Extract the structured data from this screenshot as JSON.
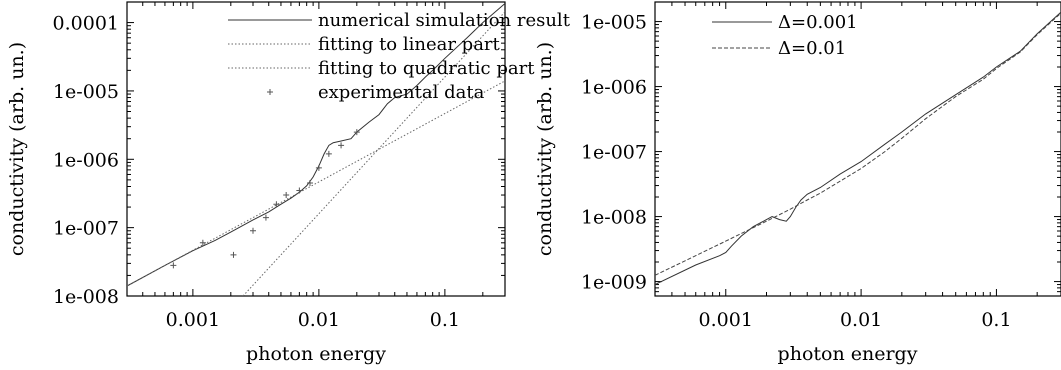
{
  "chart_data": [
    {
      "type": "line",
      "xscale": "log",
      "yscale": "log",
      "xlim": [
        0.0003,
        0.3
      ],
      "ylim": [
        1e-08,
        0.0002
      ],
      "xlabel": "photon energy",
      "ylabel": "conductivity (arb. un.)",
      "x_ticks": [
        {
          "value": 0.001,
          "label": "0.001"
        },
        {
          "value": 0.01,
          "label": "0.01"
        },
        {
          "value": 0.1,
          "label": "0.1"
        }
      ],
      "y_ticks": [
        {
          "value": 1e-08,
          "label": "1e-008"
        },
        {
          "value": 1e-07,
          "label": "1e-007"
        },
        {
          "value": 1e-06,
          "label": "1e-006"
        },
        {
          "value": 1e-05,
          "label": "1e-005"
        },
        {
          "value": 0.0001,
          "label": "0.0001"
        }
      ],
      "legend_position": "top-right",
      "series": [
        {
          "name": "numerical simulation result",
          "style": "solid",
          "x": [
            0.0003,
            0.0006,
            0.001,
            0.0015,
            0.002,
            0.003,
            0.004,
            0.005,
            0.006,
            0.007,
            0.008,
            0.009,
            0.01,
            0.011,
            0.012,
            0.013,
            0.015,
            0.018,
            0.02,
            0.025,
            0.03,
            0.035,
            0.04,
            0.05,
            0.06,
            0.07,
            0.08,
            0.1,
            0.15,
            0.2,
            0.3
          ],
          "y": [
            1.4e-08,
            2.8e-08,
            4.6e-08,
            6.5e-08,
            8.6e-08,
            1.3e-07,
            1.7e-07,
            2.2e-07,
            2.7e-07,
            3.3e-07,
            4.1e-07,
            5.5e-07,
            8e-07,
            1.2e-06,
            1.6e-06,
            1.75e-06,
            1.85e-06,
            2e-06,
            2.5e-06,
            3.5e-06,
            4.5e-06,
            6.5e-06,
            8e-06,
            9e-06,
            1.2e-05,
            1.6e-05,
            2e-05,
            3e-05,
            6e-05,
            0.0001,
            0.00019
          ]
        },
        {
          "name": "fitting to linear part",
          "style": "dotted",
          "x": [
            0.0003,
            0.3
          ],
          "y": [
            1.4e-08,
            1.4e-05
          ]
        },
        {
          "name": "fitting to quadratic part",
          "style": "dotted",
          "x": [
            0.0025,
            0.3
          ],
          "y": [
            1e-08,
            0.000144
          ]
        },
        {
          "name": "experimental data",
          "style": "points",
          "x": [
            0.0007,
            0.0012,
            0.0021,
            0.003,
            0.0038,
            0.0046,
            0.0055,
            0.007,
            0.0085,
            0.01,
            0.012,
            0.015,
            0.02
          ],
          "y": [
            2.8e-08,
            6e-08,
            4e-08,
            9e-08,
            1.4e-07,
            2.2e-07,
            3e-07,
            3.5e-07,
            4.5e-07,
            7.5e-07,
            1.2e-06,
            1.6e-06,
            2.5e-06
          ]
        }
      ]
    },
    {
      "type": "line",
      "xscale": "log",
      "yscale": "log",
      "xlim": [
        0.0003,
        0.3
      ],
      "ylim": [
        6e-10,
        2e-05
      ],
      "xlabel": "photon energy",
      "ylabel": "conductivity (arb. un.)",
      "x_ticks": [
        {
          "value": 0.001,
          "label": "0.001"
        },
        {
          "value": 0.01,
          "label": "0.01"
        },
        {
          "value": 0.1,
          "label": "0.1"
        }
      ],
      "y_ticks": [
        {
          "value": 1e-09,
          "label": "1e-009"
        },
        {
          "value": 1e-08,
          "label": "1e-008"
        },
        {
          "value": 1e-07,
          "label": "1e-007"
        },
        {
          "value": 1e-06,
          "label": "1e-006"
        },
        {
          "value": 1e-05,
          "label": "1e-005"
        }
      ],
      "legend_position": "top-left",
      "series": [
        {
          "name": "Δ=0.001",
          "style": "solid",
          "x": [
            0.0003,
            0.0006,
            0.0009,
            0.001,
            0.0011,
            0.0013,
            0.0016,
            0.002,
            0.0022,
            0.0025,
            0.0028,
            0.003,
            0.0033,
            0.0036,
            0.004,
            0.005,
            0.007,
            0.01,
            0.015,
            0.02,
            0.03,
            0.05,
            0.08,
            0.1,
            0.15,
            0.2,
            0.3
          ],
          "y": [
            9e-10,
            1.8e-09,
            2.5e-09,
            2.8e-09,
            3.5e-09,
            5e-09,
            7e-09,
            9e-09,
            1e-08,
            9e-09,
            8.5e-09,
            1e-08,
            1.4e-08,
            1.8e-08,
            2.2e-08,
            2.8e-08,
            4.5e-08,
            7e-08,
            1.3e-07,
            2e-07,
            3.8e-07,
            7.5e-07,
            1.4e-06,
            2e-06,
            3.5e-06,
            6.5e-06,
            1.4e-05
          ]
        },
        {
          "name": "Δ=0.01",
          "style": "dashed",
          "x": [
            0.0003,
            0.0006,
            0.001,
            0.002,
            0.003,
            0.004,
            0.005,
            0.007,
            0.01,
            0.015,
            0.02,
            0.03,
            0.05,
            0.08,
            0.1,
            0.15,
            0.2,
            0.3
          ],
          "y": [
            1.25e-09,
            2.5e-09,
            4.2e-09,
            8.5e-09,
            1.3e-08,
            1.8e-08,
            2.3e-08,
            3.5e-08,
            5.5e-08,
            1e-07,
            1.6e-07,
            3.2e-07,
            7e-07,
            1.3e-06,
            1.9e-06,
            3.4e-06,
            6.3e-06,
            1.35e-05
          ]
        }
      ]
    }
  ]
}
